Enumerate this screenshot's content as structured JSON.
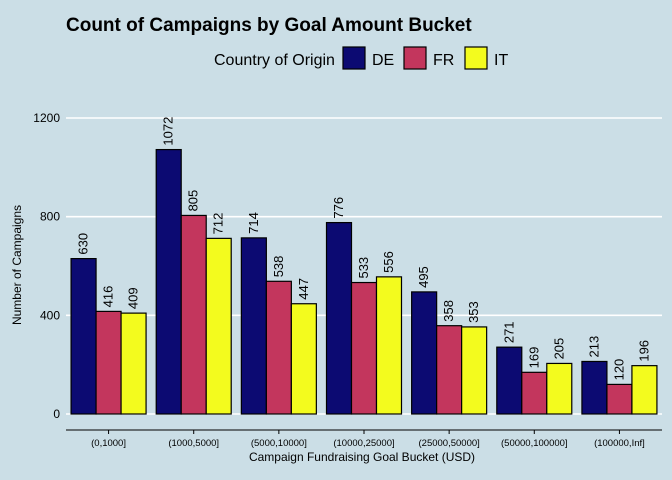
{
  "chart_data": {
    "type": "bar",
    "title": "Count of Campaigns by Goal Amount Bucket",
    "xlabel": "Campaign Fundraising Goal Bucket (USD)",
    "ylabel": "Number of Campaigns",
    "ylim": [
      0,
      1300
    ],
    "yticks": [
      0,
      400,
      800,
      1200
    ],
    "grid": "horizontal",
    "legend": {
      "title": "Country of Origin",
      "position": "top"
    },
    "categories": [
      "(0,1000]",
      "(1000,5000]",
      "(5000,10000]",
      "(10000,25000]",
      "(25000,50000]",
      "(50000,100000]",
      "(100000,Inf]"
    ],
    "series": [
      {
        "name": "DE",
        "color": "#0c0a72",
        "values": [
          630,
          1072,
          714,
          776,
          495,
          271,
          213
        ]
      },
      {
        "name": "FR",
        "color": "#c3365d",
        "values": [
          416,
          805,
          538,
          533,
          358,
          169,
          120
        ]
      },
      {
        "name": "IT",
        "color": "#f3fb1e",
        "values": [
          409,
          712,
          447,
          556,
          353,
          205,
          196
        ]
      }
    ]
  }
}
